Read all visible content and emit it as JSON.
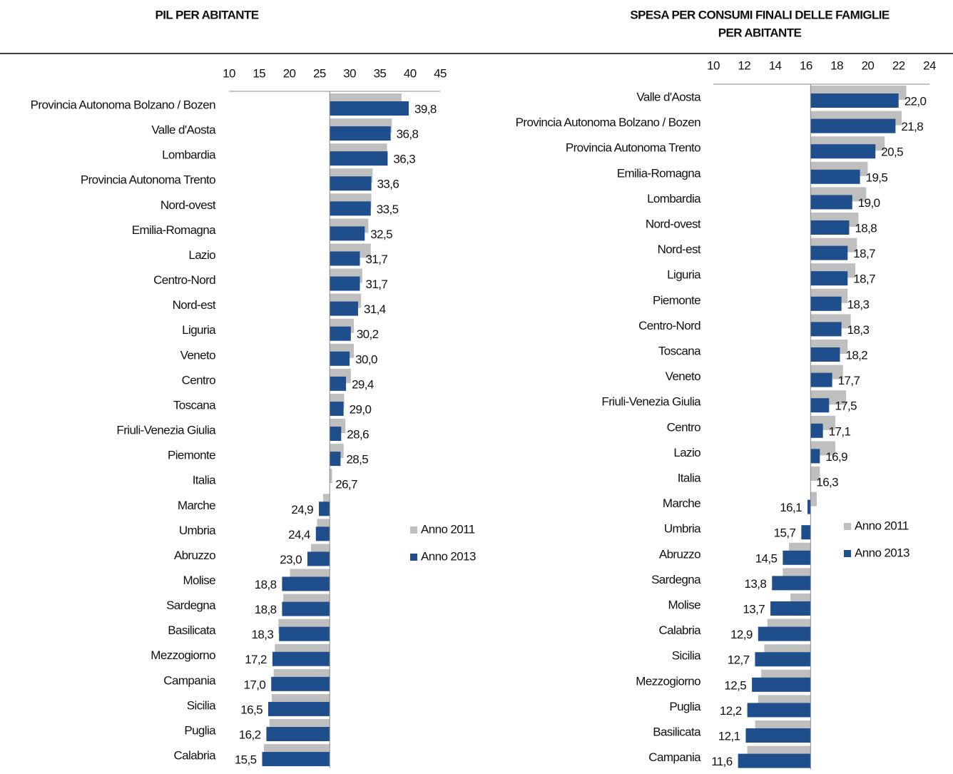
{
  "chart_data": [
    {
      "type": "bar",
      "orientation": "horizontal",
      "title": [
        "PIL PER ABITANTE"
      ],
      "categories": [
        "Provincia Autonoma Bolzano / Bozen",
        "Valle d'Aosta",
        "Lombardia",
        "Provincia Autonoma Trento",
        "Nord-ovest",
        "Emilia-Romagna",
        "Lazio",
        "Centro-Nord",
        "Nord-est",
        "Liguria",
        "Veneto",
        "Centro",
        "Toscana",
        "Friuli-Venezia Giulia",
        "Piemonte",
        "Italia",
        "Marche",
        "Umbria",
        "Abruzzo",
        "Molise",
        "Sardegna",
        "Basilicata",
        "Mezzogiorno",
        "Campania",
        "Sicilia",
        "Puglia",
        "Calabria"
      ],
      "series": [
        {
          "name": "Anno 2011",
          "color": "#bfbfbf",
          "values": [
            38.6,
            37.0,
            36.2,
            33.8,
            33.6,
            33.1,
            33.5,
            32.1,
            31.9,
            30.7,
            30.7,
            30.2,
            29.1,
            29.3,
            29.0,
            27.1,
            25.6,
            24.6,
            23.6,
            20.1,
            19.0,
            18.2,
            17.6,
            17.4,
            17.1,
            16.7,
            15.8
          ]
        },
        {
          "name": "Anno 2013",
          "color": "#1f4e8c",
          "values": [
            39.8,
            36.8,
            36.3,
            33.6,
            33.5,
            32.5,
            31.7,
            31.7,
            31.4,
            30.2,
            30.0,
            29.4,
            29.0,
            28.6,
            28.5,
            26.7,
            24.9,
            24.4,
            23.0,
            18.8,
            18.8,
            18.3,
            17.2,
            17.0,
            16.5,
            16.2,
            15.5
          ],
          "value_labels": [
            "39,8",
            "36,8",
            "36,3",
            "33,6",
            "33,5",
            "32,5",
            "31,7",
            "31,7",
            "31,4",
            "30,2",
            "30,0",
            "29,4",
            "29,0",
            "28,6",
            "28,5",
            "26,7",
            "24,9",
            "24,4",
            "23,0",
            "18,8",
            "18,8",
            "18,3",
            "17,2",
            "17,0",
            "16,5",
            "16,2",
            "15,5"
          ]
        }
      ],
      "xlim": [
        10,
        45
      ],
      "xticks": [
        10,
        15,
        20,
        25,
        30,
        35,
        40,
        45
      ],
      "baseline": 26.7,
      "legend": "right"
    },
    {
      "type": "bar",
      "orientation": "horizontal",
      "title": [
        "SPESA PER CONSUMI FINALI DELLE FAMIGLIE",
        "PER ABITANTE"
      ],
      "categories": [
        "Valle d'Aosta",
        "Provincia Autonoma Bolzano / Bozen",
        "Provincia Autonoma Trento",
        "Emilia-Romagna",
        "Lombardia",
        "Nord-ovest",
        "Nord-est",
        "Liguria",
        "Piemonte",
        "Centro-Nord",
        "Toscana",
        "Veneto",
        "Friuli-Venezia Giulia",
        "Centro",
        "Lazio",
        "Italia",
        "Marche",
        "Umbria",
        "Abruzzo",
        "Sardegna",
        "Molise",
        "Calabria",
        "Sicilia",
        "Mezzogiorno",
        "Puglia",
        "Basilicata",
        "Campania"
      ],
      "series": [
        {
          "name": "Anno 2011",
          "color": "#bfbfbf",
          "values": [
            22.5,
            22.2,
            21.1,
            20.0,
            19.9,
            19.4,
            19.3,
            19.2,
            18.7,
            18.9,
            18.7,
            18.4,
            18.6,
            17.9,
            17.9,
            16.9,
            16.7,
            16.3,
            14.9,
            14.5,
            15.0,
            13.5,
            13.3,
            13.1,
            12.9,
            12.7,
            12.2
          ]
        },
        {
          "name": "Anno 2013",
          "color": "#1f4e8c",
          "values": [
            22.0,
            21.8,
            20.5,
            19.5,
            19.0,
            18.8,
            18.7,
            18.7,
            18.3,
            18.3,
            18.2,
            17.7,
            17.5,
            17.1,
            16.9,
            16.3,
            16.1,
            15.7,
            14.5,
            13.8,
            13.7,
            12.9,
            12.7,
            12.5,
            12.2,
            12.1,
            11.6
          ],
          "value_labels": [
            "22,0",
            "21,8",
            "20,5",
            "19,5",
            "19,0",
            "18,8",
            "18,7",
            "18,7",
            "18,3",
            "18,3",
            "18,2",
            "17,7",
            "17,5",
            "17,1",
            "16,9",
            "16,3",
            "16,1",
            "15,7",
            "14,5",
            "13,8",
            "13,7",
            "12,9",
            "12,7",
            "12,5",
            "12,2",
            "12,1",
            "11,6"
          ]
        }
      ],
      "xlim": [
        10,
        24
      ],
      "xticks": [
        10,
        12,
        14,
        16,
        18,
        20,
        22,
        24
      ],
      "baseline": 16.3,
      "legend": "right"
    }
  ]
}
